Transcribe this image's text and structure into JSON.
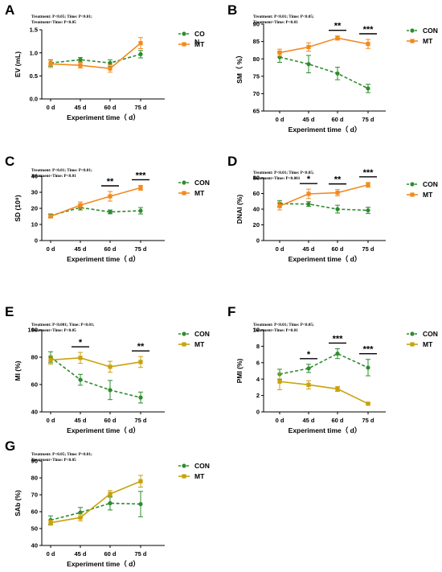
{
  "colors": {
    "con": "#2e8b2e",
    "mt_orange": "#f28a1f",
    "mt_gold": "#c8a20d",
    "axis": "#000000",
    "background": "#ffffff"
  },
  "chart_data": [
    {
      "panel": "A",
      "type": "line",
      "stats_lines": [
        "Treatment: P<0.05; Time: P<0.01;",
        "Treatment+Time: P<0.05"
      ],
      "xlabel": "Experiment time（ d）",
      "ylabel": "EV (mL)",
      "categories": [
        "0 d",
        "45 d",
        "60 d",
        "75 d"
      ],
      "ylim": [
        0.0,
        1.5
      ],
      "yticks": [
        0.0,
        0.5,
        1.0,
        1.5
      ],
      "yticklabels": [
        "0.0",
        "0.5",
        "1.0",
        "1.5"
      ],
      "series": [
        {
          "name": "CON",
          "legend_lines": [
            "CO",
            "N"
          ],
          "color_key": "con",
          "dashed": true,
          "values": [
            0.78,
            0.85,
            0.78,
            0.97
          ],
          "errors": [
            0.07,
            0.05,
            0.07,
            0.08
          ]
        },
        {
          "name": "MT",
          "legend_lines": [
            "MT"
          ],
          "color_key": "mt_orange",
          "dashed": false,
          "values": [
            0.76,
            0.73,
            0.66,
            1.21
          ],
          "errors": [
            0.08,
            0.06,
            0.08,
            0.12
          ]
        }
      ],
      "significance": []
    },
    {
      "panel": "B",
      "type": "line",
      "stats_lines": [
        "Treatment: P<0.01; Time: P<0.05;",
        "Treatment+Time: P<0.01"
      ],
      "xlabel": "Experiment time（ d）",
      "ylabel": "SM（ %）",
      "categories": [
        "0 d",
        "45 d",
        "60 d",
        "75 d"
      ],
      "ylim": [
        65,
        90
      ],
      "yticks": [
        65,
        70,
        75,
        80,
        85,
        90
      ],
      "yticklabels": [
        "65",
        "70",
        "75",
        "80",
        "85",
        "90"
      ],
      "series": [
        {
          "name": "CON",
          "legend_lines": [
            "CON"
          ],
          "color_key": "con",
          "dashed": true,
          "values": [
            80.5,
            78.5,
            75.8,
            71.5
          ],
          "errors": [
            1.5,
            2.5,
            1.8,
            1.2
          ]
        },
        {
          "name": "MT",
          "legend_lines": [
            "MT"
          ],
          "color_key": "mt_orange",
          "dashed": false,
          "values": [
            81.8,
            83.4,
            86.0,
            84.3
          ],
          "errors": [
            1.0,
            1.2,
            0.6,
            1.3
          ]
        }
      ],
      "significance": [
        {
          "index": 2,
          "label": "**"
        },
        {
          "index": 3,
          "label": "***"
        }
      ]
    },
    {
      "panel": "C",
      "type": "line",
      "stats_lines": [
        "Treatment: P<0.01; Time: P<0.01;",
        "Treatment+Time: P<0.01"
      ],
      "xlabel": "Experiment time（ d）",
      "ylabel": "SD (10⁸)",
      "categories": [
        "0 d",
        "45 d",
        "60 d",
        "75 d"
      ],
      "ylim": [
        0,
        40
      ],
      "yticks": [
        0,
        10,
        20,
        30,
        40
      ],
      "yticklabels": [
        "0",
        "10",
        "20",
        "30",
        "40"
      ],
      "series": [
        {
          "name": "CON",
          "legend_lines": [
            "CON"
          ],
          "color_key": "con",
          "dashed": true,
          "values": [
            15.5,
            20.5,
            17.8,
            18.5
          ],
          "errors": [
            1.0,
            1.5,
            1.2,
            2.0
          ]
        },
        {
          "name": "MT",
          "legend_lines": [
            "MT"
          ],
          "color_key": "mt_orange",
          "dashed": false,
          "values": [
            15.0,
            22.0,
            27.5,
            32.8
          ],
          "errors": [
            1.0,
            2.0,
            3.0,
            1.5
          ]
        }
      ],
      "significance": [
        {
          "index": 2,
          "label": "**"
        },
        {
          "index": 3,
          "label": "***"
        }
      ]
    },
    {
      "panel": "D",
      "type": "line",
      "stats_lines": [
        "Treatment: P<0.01; Time: P<0.05;",
        "Treatment+Time: P<0.001"
      ],
      "xlabel": "Experiment time（ d）",
      "ylabel": "DNAI (%)",
      "categories": [
        "0 d",
        "45 d",
        "60 d",
        "75 d"
      ],
      "ylim": [
        0,
        80
      ],
      "yticks": [
        0,
        20,
        40,
        60,
        80
      ],
      "yticklabels": [
        "0",
        "20",
        "40",
        "60",
        "80"
      ],
      "series": [
        {
          "name": "CON",
          "legend_lines": [
            "CON"
          ],
          "color_key": "con",
          "dashed": true,
          "values": [
            47.0,
            46.5,
            40.0,
            38.5
          ],
          "errors": [
            4.0,
            3.0,
            5.0,
            4.0
          ]
        },
        {
          "name": "MT",
          "legend_lines": [
            "MT"
          ],
          "color_key": "mt_orange",
          "dashed": false,
          "values": [
            44.0,
            59.5,
            61.0,
            71.0
          ],
          "errors": [
            5.0,
            6.0,
            4.0,
            3.0
          ]
        }
      ],
      "significance": [
        {
          "index": 1,
          "label": "*"
        },
        {
          "index": 2,
          "label": "**"
        },
        {
          "index": 3,
          "label": "***"
        }
      ]
    },
    {
      "panel": "E",
      "type": "line",
      "stats_lines": [
        "Treatment: P<0.001; Time: P<0.01;",
        "Treatment+Time: P<0.05"
      ],
      "xlabel": "Experiment time（ d）",
      "ylabel": "MI (%)",
      "categories": [
        "0 d",
        "45 d",
        "60 d",
        "75 d"
      ],
      "ylim": [
        40,
        100
      ],
      "yticks": [
        40,
        60,
        80,
        100
      ],
      "yticklabels": [
        "40",
        "60",
        "80",
        "100"
      ],
      "series": [
        {
          "name": "CON",
          "legend_lines": [
            "CON"
          ],
          "color_key": "con",
          "dashed": true,
          "values": [
            80.0,
            63.5,
            56.0,
            50.5
          ],
          "errors": [
            4.0,
            4.0,
            7.0,
            4.0
          ]
        },
        {
          "name": "MT",
          "legend_lines": [
            "MT"
          ],
          "color_key": "mt_gold",
          "dashed": false,
          "values": [
            78.0,
            79.5,
            73.0,
            76.5
          ],
          "errors": [
            3.0,
            4.0,
            4.0,
            4.0
          ]
        }
      ],
      "significance": [
        {
          "index": 1,
          "label": "*"
        },
        {
          "index": 3,
          "label": "**"
        }
      ]
    },
    {
      "panel": "F",
      "type": "line",
      "stats_lines": [
        "Treatment: P<0.01; Time: P<0.05;",
        "Treatment+Time: P<0.01"
      ],
      "xlabel": "Experiment time（ d）",
      "ylabel": "PMI (%)",
      "categories": [
        "0 d",
        "45 d",
        "60 d",
        "75 d"
      ],
      "ylim": [
        0,
        10
      ],
      "yticks": [
        0,
        2,
        4,
        6,
        8,
        10
      ],
      "yticklabels": [
        "0",
        "2",
        "4",
        "6",
        "8",
        "10"
      ],
      "series": [
        {
          "name": "CON",
          "legend_lines": [
            "CON"
          ],
          "color_key": "con",
          "dashed": true,
          "values": [
            4.6,
            5.3,
            7.1,
            5.4
          ],
          "errors": [
            0.6,
            0.5,
            0.6,
            1.0
          ]
        },
        {
          "name": "MT",
          "legend_lines": [
            "MT"
          ],
          "color_key": "mt_gold",
          "dashed": false,
          "values": [
            3.7,
            3.3,
            2.8,
            1.0
          ],
          "errors": [
            1.0,
            0.5,
            0.3,
            0.1
          ]
        }
      ],
      "significance": [
        {
          "index": 1,
          "label": "*"
        },
        {
          "index": 2,
          "label": "***"
        },
        {
          "index": 3,
          "label": "***"
        }
      ]
    },
    {
      "panel": "G",
      "type": "line",
      "stats_lines": [
        "Treatment: P<0.05; Time: P<0.01;",
        "Treatment+Time: P<0.05"
      ],
      "xlabel": "Experiment time（ d）",
      "ylabel": "SAb (%)",
      "categories": [
        "0 d",
        "45 d",
        "60 d",
        "75 d"
      ],
      "ylim": [
        40,
        90
      ],
      "yticks": [
        40,
        50,
        60,
        70,
        80,
        90
      ],
      "yticklabels": [
        "40",
        "50",
        "60",
        "70",
        "80",
        "90"
      ],
      "series": [
        {
          "name": "CON",
          "legend_lines": [
            "CON"
          ],
          "color_key": "con",
          "dashed": true,
          "values": [
            55.0,
            59.5,
            65.0,
            64.5
          ],
          "errors": [
            2.5,
            3.0,
            4.0,
            7.5
          ]
        },
        {
          "name": "MT",
          "legend_lines": [
            "MT"
          ],
          "color_key": "mt_gold",
          "dashed": false,
          "values": [
            53.5,
            56.5,
            70.5,
            78.0
          ],
          "errors": [
            1.5,
            2.0,
            2.0,
            3.5
          ]
        }
      ],
      "significance": []
    }
  ]
}
